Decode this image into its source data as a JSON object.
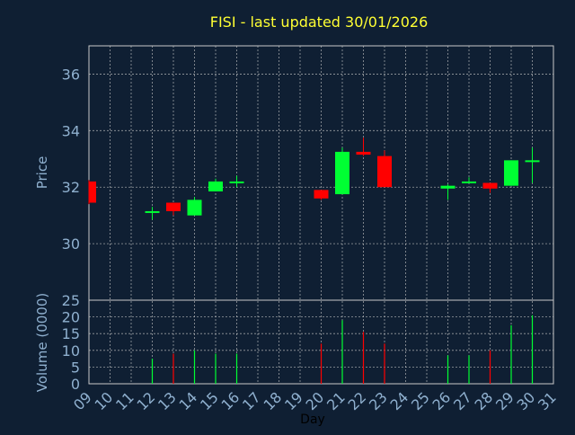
{
  "title": "FISI - last updated 30/01/2026",
  "colors": {
    "background": "#0f1f33",
    "title": "#ffff33",
    "axis_text": "#8fb0cf",
    "grid": "#c8c8c8",
    "up": "#00ff33",
    "down": "#ff0000"
  },
  "chart_data": [
    {
      "type": "candlestick",
      "ylabel": "Price",
      "ylim": [
        28.0,
        37.0
      ],
      "yticks": [
        30,
        32,
        34,
        36
      ],
      "grid": true,
      "candles": [
        {
          "x": 9,
          "open": 32.2,
          "high": 32.25,
          "low": 31.4,
          "close": 31.45
        },
        {
          "x": 12,
          "open": 31.15,
          "high": 31.3,
          "low": 30.85,
          "close": 31.15
        },
        {
          "x": 13,
          "open": 31.45,
          "high": 31.45,
          "low": 31.0,
          "close": 31.15
        },
        {
          "x": 14,
          "open": 31.0,
          "high": 31.65,
          "low": 31.0,
          "close": 31.55
        },
        {
          "x": 15,
          "open": 31.85,
          "high": 32.3,
          "low": 31.85,
          "close": 32.2
        },
        {
          "x": 16,
          "open": 32.15,
          "high": 32.4,
          "low": 32.0,
          "close": 32.2
        },
        {
          "x": 20,
          "open": 31.9,
          "high": 31.9,
          "low": 31.55,
          "close": 31.6
        },
        {
          "x": 21,
          "open": 31.75,
          "high": 33.4,
          "low": 31.75,
          "close": 33.25
        },
        {
          "x": 22,
          "open": 33.25,
          "high": 33.75,
          "low": 33.1,
          "close": 33.15
        },
        {
          "x": 23,
          "open": 33.1,
          "high": 33.3,
          "low": 32.0,
          "close": 32.0
        },
        {
          "x": 26,
          "open": 31.95,
          "high": 32.1,
          "low": 31.55,
          "close": 32.05
        },
        {
          "x": 27,
          "open": 32.15,
          "high": 32.35,
          "low": 32.15,
          "close": 32.2
        },
        {
          "x": 28,
          "open": 32.15,
          "high": 32.15,
          "low": 31.8,
          "close": 31.95
        },
        {
          "x": 29,
          "open": 32.05,
          "high": 32.95,
          "low": 32.05,
          "close": 32.95
        },
        {
          "x": 30,
          "open": 32.9,
          "high": 33.4,
          "low": 32.15,
          "close": 32.95
        }
      ]
    },
    {
      "type": "bar",
      "ylabel": "Volume (0000)",
      "xlabel": "Day",
      "ylim": [
        0,
        25
      ],
      "yticks": [
        0,
        5,
        10,
        15,
        20,
        25
      ],
      "grid": true,
      "bars": [
        {
          "x": 12,
          "value": 7.5,
          "dir": "up"
        },
        {
          "x": 13,
          "value": 9,
          "dir": "down"
        },
        {
          "x": 14,
          "value": 10,
          "dir": "up"
        },
        {
          "x": 15,
          "value": 9,
          "dir": "up"
        },
        {
          "x": 16,
          "value": 9,
          "dir": "up"
        },
        {
          "x": 20,
          "value": 12,
          "dir": "down"
        },
        {
          "x": 21,
          "value": 19,
          "dir": "up"
        },
        {
          "x": 22,
          "value": 15.5,
          "dir": "down"
        },
        {
          "x": 23,
          "value": 12,
          "dir": "down"
        },
        {
          "x": 26,
          "value": 8.5,
          "dir": "up"
        },
        {
          "x": 27,
          "value": 8.5,
          "dir": "up"
        },
        {
          "x": 28,
          "value": 10,
          "dir": "down"
        },
        {
          "x": 29,
          "value": 17.5,
          "dir": "up"
        },
        {
          "x": 30,
          "value": 20.5,
          "dir": "up"
        }
      ],
      "xticks": [
        "09",
        "10",
        "11",
        "12",
        "13",
        "14",
        "15",
        "16",
        "17",
        "18",
        "19",
        "20",
        "21",
        "22",
        "23",
        "24",
        "25",
        "26",
        "27",
        "28",
        "29",
        "30",
        "31"
      ],
      "xlim": [
        9,
        31
      ]
    }
  ]
}
